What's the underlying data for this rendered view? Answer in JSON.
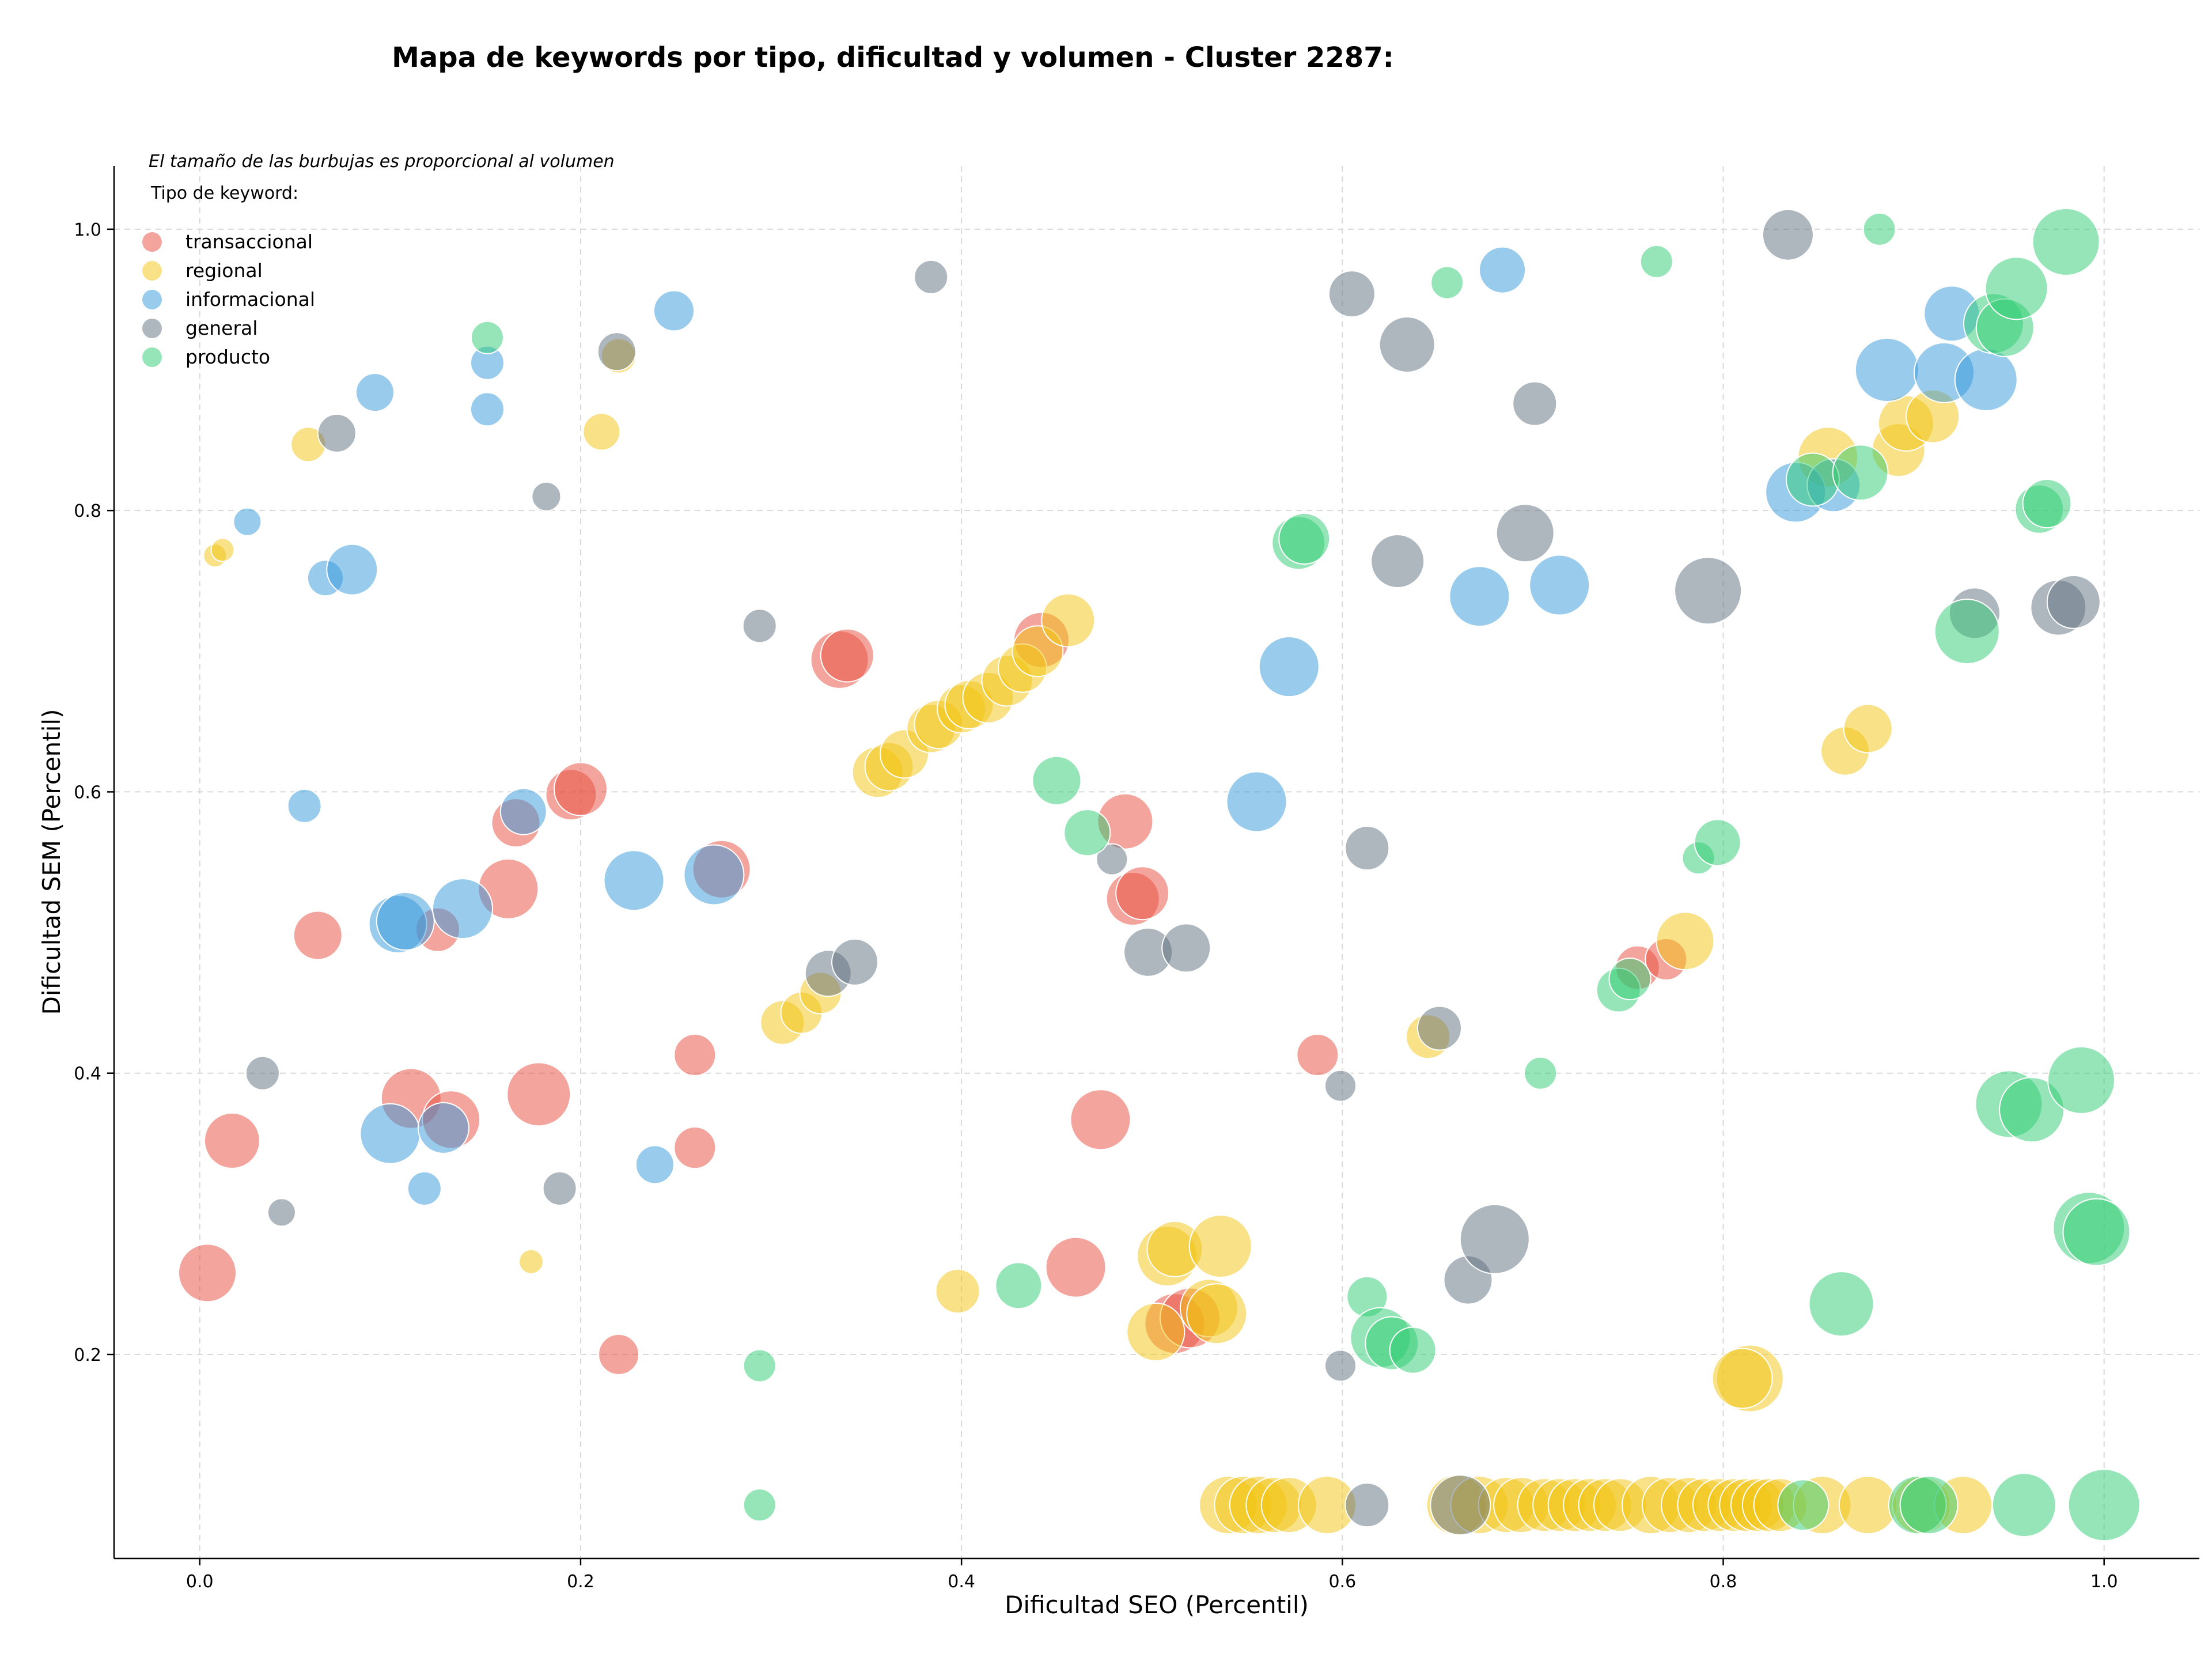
{
  "chart_data": {
    "type": "scatter",
    "title": "Mapa de keywords por tipo, dificultad y volumen - Cluster 2287:",
    "xlabel": "Dificultad SEO (Percentil)",
    "ylabel": "Dificultad SEM (Percentil)",
    "note": "El tamaño de las burbujas es proporcional al volumen",
    "legend_title": "Tipo de keyword:",
    "legend_position": "top-left",
    "grid": true,
    "xlim": [
      -0.045,
      1.05
    ],
    "ylim": [
      0.055,
      1.045
    ],
    "x_ticks": [
      "0.0",
      "0.2",
      "0.4",
      "0.6",
      "0.8",
      "1.0"
    ],
    "y_ticks": [
      "0.2",
      "0.4",
      "0.6",
      "0.8",
      "1.0"
    ],
    "series": [
      {
        "name": "transaccional",
        "color": "#e74c3c",
        "points": [
          {
            "x": 0.004,
            "y": 0.258,
            "r": 50
          },
          {
            "x": 0.017,
            "y": 0.352,
            "r": 48
          },
          {
            "x": 0.062,
            "y": 0.498,
            "r": 42
          },
          {
            "x": 0.111,
            "y": 0.382,
            "r": 52
          },
          {
            "x": 0.125,
            "y": 0.502,
            "r": 38
          },
          {
            "x": 0.132,
            "y": 0.367,
            "r": 50
          },
          {
            "x": 0.162,
            "y": 0.531,
            "r": 52
          },
          {
            "x": 0.166,
            "y": 0.578,
            "r": 42
          },
          {
            "x": 0.178,
            "y": 0.385,
            "r": 55
          },
          {
            "x": 0.195,
            "y": 0.598,
            "r": 44
          },
          {
            "x": 0.2,
            "y": 0.602,
            "r": 46
          },
          {
            "x": 0.22,
            "y": 0.2,
            "r": 35
          },
          {
            "x": 0.26,
            "y": 0.413,
            "r": 36
          },
          {
            "x": 0.26,
            "y": 0.347,
            "r": 36
          },
          {
            "x": 0.274,
            "y": 0.545,
            "r": 50
          },
          {
            "x": 0.336,
            "y": 0.694,
            "r": 50
          },
          {
            "x": 0.34,
            "y": 0.697,
            "r": 46
          },
          {
            "x": 0.442,
            "y": 0.708,
            "r": 48
          },
          {
            "x": 0.46,
            "y": 0.262,
            "r": 52
          },
          {
            "x": 0.473,
            "y": 0.367,
            "r": 52
          },
          {
            "x": 0.486,
            "y": 0.579,
            "r": 48
          },
          {
            "x": 0.49,
            "y": 0.524,
            "r": 46
          },
          {
            "x": 0.495,
            "y": 0.528,
            "r": 46
          },
          {
            "x": 0.512,
            "y": 0.222,
            "r": 52
          },
          {
            "x": 0.52,
            "y": 0.226,
            "r": 52
          },
          {
            "x": 0.587,
            "y": 0.413,
            "r": 36
          },
          {
            "x": 0.755,
            "y": 0.475,
            "r": 38
          },
          {
            "x": 0.77,
            "y": 0.481,
            "r": 36
          }
        ]
      },
      {
        "name": "regional",
        "color": "#f1c40f",
        "points": [
          {
            "x": 0.008,
            "y": 0.768,
            "r": 20
          },
          {
            "x": 0.012,
            "y": 0.772,
            "r": 20
          },
          {
            "x": 0.057,
            "y": 0.847,
            "r": 30
          },
          {
            "x": 0.174,
            "y": 0.266,
            "r": 21
          },
          {
            "x": 0.211,
            "y": 0.856,
            "r": 32
          },
          {
            "x": 0.22,
            "y": 0.91,
            "r": 30
          },
          {
            "x": 0.306,
            "y": 0.436,
            "r": 38
          },
          {
            "x": 0.316,
            "y": 0.443,
            "r": 36
          },
          {
            "x": 0.326,
            "y": 0.457,
            "r": 36
          },
          {
            "x": 0.356,
            "y": 0.614,
            "r": 44
          },
          {
            "x": 0.362,
            "y": 0.618,
            "r": 42
          },
          {
            "x": 0.37,
            "y": 0.627,
            "r": 42
          },
          {
            "x": 0.384,
            "y": 0.645,
            "r": 42
          },
          {
            "x": 0.388,
            "y": 0.648,
            "r": 42
          },
          {
            "x": 0.4,
            "y": 0.659,
            "r": 42
          },
          {
            "x": 0.404,
            "y": 0.662,
            "r": 42
          },
          {
            "x": 0.414,
            "y": 0.667,
            "r": 44
          },
          {
            "x": 0.424,
            "y": 0.679,
            "r": 44
          },
          {
            "x": 0.432,
            "y": 0.688,
            "r": 42
          },
          {
            "x": 0.44,
            "y": 0.7,
            "r": 44
          },
          {
            "x": 0.456,
            "y": 0.722,
            "r": 46
          },
          {
            "x": 0.398,
            "y": 0.245,
            "r": 38
          },
          {
            "x": 0.502,
            "y": 0.216,
            "r": 50
          },
          {
            "x": 0.508,
            "y": 0.27,
            "r": 52
          },
          {
            "x": 0.512,
            "y": 0.275,
            "r": 48
          },
          {
            "x": 0.53,
            "y": 0.233,
            "r": 50
          },
          {
            "x": 0.534,
            "y": 0.229,
            "r": 52
          },
          {
            "x": 0.536,
            "y": 0.277,
            "r": 54
          },
          {
            "x": 0.645,
            "y": 0.426,
            "r": 38
          },
          {
            "x": 0.78,
            "y": 0.494,
            "r": 50
          },
          {
            "x": 0.814,
            "y": 0.183,
            "r": 58
          },
          {
            "x": 0.81,
            "y": 0.183,
            "r": 52
          },
          {
            "x": 0.855,
            "y": 0.838,
            "r": 52
          },
          {
            "x": 0.864,
            "y": 0.629,
            "r": 42
          },
          {
            "x": 0.876,
            "y": 0.645,
            "r": 42
          },
          {
            "x": 0.892,
            "y": 0.843,
            "r": 46
          },
          {
            "x": 0.896,
            "y": 0.862,
            "r": 48
          },
          {
            "x": 0.91,
            "y": 0.867,
            "r": 46
          },
          {
            "x": 0.54,
            "y": 0.093,
            "r": 50
          },
          {
            "x": 0.548,
            "y": 0.093,
            "r": 50
          },
          {
            "x": 0.556,
            "y": 0.093,
            "r": 50
          },
          {
            "x": 0.564,
            "y": 0.093,
            "r": 48
          },
          {
            "x": 0.572,
            "y": 0.093,
            "r": 48
          },
          {
            "x": 0.592,
            "y": 0.093,
            "r": 50
          },
          {
            "x": 0.66,
            "y": 0.093,
            "r": 52
          },
          {
            "x": 0.672,
            "y": 0.093,
            "r": 50
          },
          {
            "x": 0.686,
            "y": 0.093,
            "r": 48
          },
          {
            "x": 0.694,
            "y": 0.093,
            "r": 48
          },
          {
            "x": 0.706,
            "y": 0.093,
            "r": 46
          },
          {
            "x": 0.714,
            "y": 0.093,
            "r": 46
          },
          {
            "x": 0.722,
            "y": 0.093,
            "r": 46
          },
          {
            "x": 0.73,
            "y": 0.093,
            "r": 46
          },
          {
            "x": 0.738,
            "y": 0.093,
            "r": 46
          },
          {
            "x": 0.746,
            "y": 0.093,
            "r": 46
          },
          {
            "x": 0.762,
            "y": 0.093,
            "r": 50
          },
          {
            "x": 0.772,
            "y": 0.093,
            "r": 48
          },
          {
            "x": 0.782,
            "y": 0.093,
            "r": 48
          },
          {
            "x": 0.79,
            "y": 0.093,
            "r": 46
          },
          {
            "x": 0.798,
            "y": 0.093,
            "r": 46
          },
          {
            "x": 0.806,
            "y": 0.093,
            "r": 46
          },
          {
            "x": 0.812,
            "y": 0.093,
            "r": 46
          },
          {
            "x": 0.818,
            "y": 0.093,
            "r": 46
          },
          {
            "x": 0.824,
            "y": 0.093,
            "r": 46
          },
          {
            "x": 0.83,
            "y": 0.093,
            "r": 46
          },
          {
            "x": 0.852,
            "y": 0.093,
            "r": 50
          },
          {
            "x": 0.876,
            "y": 0.093,
            "r": 50
          },
          {
            "x": 0.904,
            "y": 0.093,
            "r": 50
          },
          {
            "x": 0.926,
            "y": 0.093,
            "r": 50
          }
        ]
      },
      {
        "name": "informacional",
        "color": "#3498db",
        "points": [
          {
            "x": 0.025,
            "y": 0.792,
            "r": 24
          },
          {
            "x": 0.055,
            "y": 0.59,
            "r": 29
          },
          {
            "x": 0.066,
            "y": 0.752,
            "r": 31
          },
          {
            "x": 0.08,
            "y": 0.758,
            "r": 44
          },
          {
            "x": 0.092,
            "y": 0.884,
            "r": 33
          },
          {
            "x": 0.1,
            "y": 0.357,
            "r": 52
          },
          {
            "x": 0.104,
            "y": 0.506,
            "r": 50
          },
          {
            "x": 0.108,
            "y": 0.508,
            "r": 50
          },
          {
            "x": 0.118,
            "y": 0.318,
            "r": 29
          },
          {
            "x": 0.128,
            "y": 0.361,
            "r": 44
          },
          {
            "x": 0.138,
            "y": 0.517,
            "r": 52
          },
          {
            "x": 0.151,
            "y": 0.905,
            "r": 29
          },
          {
            "x": 0.151,
            "y": 0.872,
            "r": 29
          },
          {
            "x": 0.17,
            "y": 0.586,
            "r": 40
          },
          {
            "x": 0.228,
            "y": 0.537,
            "r": 52
          },
          {
            "x": 0.239,
            "y": 0.335,
            "r": 33
          },
          {
            "x": 0.249,
            "y": 0.942,
            "r": 35
          },
          {
            "x": 0.27,
            "y": 0.541,
            "r": 52
          },
          {
            "x": 0.555,
            "y": 0.593,
            "r": 52
          },
          {
            "x": 0.572,
            "y": 0.689,
            "r": 52
          },
          {
            "x": 0.672,
            "y": 0.739,
            "r": 52
          },
          {
            "x": 0.684,
            "y": 0.971,
            "r": 40
          },
          {
            "x": 0.714,
            "y": 0.747,
            "r": 52
          },
          {
            "x": 0.838,
            "y": 0.813,
            "r": 52
          },
          {
            "x": 0.858,
            "y": 0.818,
            "r": 46
          },
          {
            "x": 0.886,
            "y": 0.9,
            "r": 55
          },
          {
            "x": 0.92,
            "y": 0.94,
            "r": 48
          },
          {
            "x": 0.916,
            "y": 0.898,
            "r": 52
          },
          {
            "x": 0.938,
            "y": 0.893,
            "r": 54
          }
        ]
      },
      {
        "name": "general",
        "color": "#5d6d7e",
        "points": [
          {
            "x": 0.033,
            "y": 0.4,
            "r": 29
          },
          {
            "x": 0.043,
            "y": 0.301,
            "r": 24
          },
          {
            "x": 0.072,
            "y": 0.855,
            "r": 33
          },
          {
            "x": 0.182,
            "y": 0.81,
            "r": 25
          },
          {
            "x": 0.189,
            "y": 0.318,
            "r": 29
          },
          {
            "x": 0.219,
            "y": 0.913,
            "r": 33
          },
          {
            "x": 0.294,
            "y": 0.718,
            "r": 29
          },
          {
            "x": 0.33,
            "y": 0.471,
            "r": 40
          },
          {
            "x": 0.344,
            "y": 0.479,
            "r": 40
          },
          {
            "x": 0.384,
            "y": 0.966,
            "r": 29
          },
          {
            "x": 0.479,
            "y": 0.552,
            "r": 27
          },
          {
            "x": 0.498,
            "y": 0.486,
            "r": 42
          },
          {
            "x": 0.518,
            "y": 0.489,
            "r": 42
          },
          {
            "x": 0.599,
            "y": 0.391,
            "r": 27
          },
          {
            "x": 0.599,
            "y": 0.192,
            "r": 27
          },
          {
            "x": 0.605,
            "y": 0.954,
            "r": 40
          },
          {
            "x": 0.613,
            "y": 0.56,
            "r": 38
          },
          {
            "x": 0.613,
            "y": 0.093,
            "r": 38
          },
          {
            "x": 0.629,
            "y": 0.764,
            "r": 46
          },
          {
            "x": 0.634,
            "y": 0.918,
            "r": 48
          },
          {
            "x": 0.651,
            "y": 0.432,
            "r": 38
          },
          {
            "x": 0.666,
            "y": 0.253,
            "r": 42
          },
          {
            "x": 0.662,
            "y": 0.093,
            "r": 52
          },
          {
            "x": 0.68,
            "y": 0.282,
            "r": 60
          },
          {
            "x": 0.696,
            "y": 0.784,
            "r": 50
          },
          {
            "x": 0.701,
            "y": 0.876,
            "r": 38
          },
          {
            "x": 0.792,
            "y": 0.743,
            "r": 58
          },
          {
            "x": 0.834,
            "y": 0.996,
            "r": 44
          },
          {
            "x": 0.932,
            "y": 0.727,
            "r": 44
          },
          {
            "x": 0.976,
            "y": 0.731,
            "r": 48
          },
          {
            "x": 0.984,
            "y": 0.735,
            "r": 46
          }
        ]
      },
      {
        "name": "producto",
        "color": "#2ecc71",
        "points": [
          {
            "x": 0.151,
            "y": 0.923,
            "r": 28
          },
          {
            "x": 0.294,
            "y": 0.192,
            "r": 28
          },
          {
            "x": 0.294,
            "y": 0.093,
            "r": 28
          },
          {
            "x": 0.43,
            "y": 0.249,
            "r": 40
          },
          {
            "x": 0.45,
            "y": 0.608,
            "r": 42
          },
          {
            "x": 0.466,
            "y": 0.571,
            "r": 40
          },
          {
            "x": 0.577,
            "y": 0.777,
            "r": 46
          },
          {
            "x": 0.58,
            "y": 0.78,
            "r": 44
          },
          {
            "x": 0.613,
            "y": 0.241,
            "r": 35
          },
          {
            "x": 0.62,
            "y": 0.212,
            "r": 52
          },
          {
            "x": 0.626,
            "y": 0.208,
            "r": 46
          },
          {
            "x": 0.637,
            "y": 0.203,
            "r": 40
          },
          {
            "x": 0.655,
            "y": 0.962,
            "r": 28
          },
          {
            "x": 0.704,
            "y": 0.4,
            "r": 28
          },
          {
            "x": 0.765,
            "y": 0.977,
            "r": 28
          },
          {
            "x": 0.745,
            "y": 0.459,
            "r": 38
          },
          {
            "x": 0.751,
            "y": 0.467,
            "r": 36
          },
          {
            "x": 0.787,
            "y": 0.553,
            "r": 28
          },
          {
            "x": 0.797,
            "y": 0.564,
            "r": 40
          },
          {
            "x": 0.842,
            "y": 0.093,
            "r": 44
          },
          {
            "x": 0.847,
            "y": 0.822,
            "r": 46
          },
          {
            "x": 0.862,
            "y": 0.236,
            "r": 56
          },
          {
            "x": 0.872,
            "y": 0.827,
            "r": 48
          },
          {
            "x": 0.882,
            "y": 1.0,
            "r": 28
          },
          {
            "x": 0.902,
            "y": 0.093,
            "r": 50
          },
          {
            "x": 0.908,
            "y": 0.093,
            "r": 50
          },
          {
            "x": 0.928,
            "y": 0.714,
            "r": 56
          },
          {
            "x": 0.942,
            "y": 0.933,
            "r": 52
          },
          {
            "x": 0.948,
            "y": 0.93,
            "r": 50
          },
          {
            "x": 0.954,
            "y": 0.958,
            "r": 54
          },
          {
            "x": 0.95,
            "y": 0.378,
            "r": 58
          },
          {
            "x": 0.958,
            "y": 0.093,
            "r": 55
          },
          {
            "x": 0.962,
            "y": 0.374,
            "r": 56
          },
          {
            "x": 0.966,
            "y": 0.801,
            "r": 42
          },
          {
            "x": 0.97,
            "y": 0.805,
            "r": 42
          },
          {
            "x": 0.98,
            "y": 0.991,
            "r": 58
          },
          {
            "x": 0.988,
            "y": 0.395,
            "r": 58
          },
          {
            "x": 0.992,
            "y": 0.29,
            "r": 62
          },
          {
            "x": 0.996,
            "y": 0.287,
            "r": 58
          },
          {
            "x": 1.0,
            "y": 0.093,
            "r": 62
          }
        ]
      }
    ]
  },
  "colors": {
    "transaccional": "#e74c3c",
    "regional": "#f1c40f",
    "informacional": "#3498db",
    "general": "#5d6d7e",
    "producto": "#2ecc71"
  }
}
